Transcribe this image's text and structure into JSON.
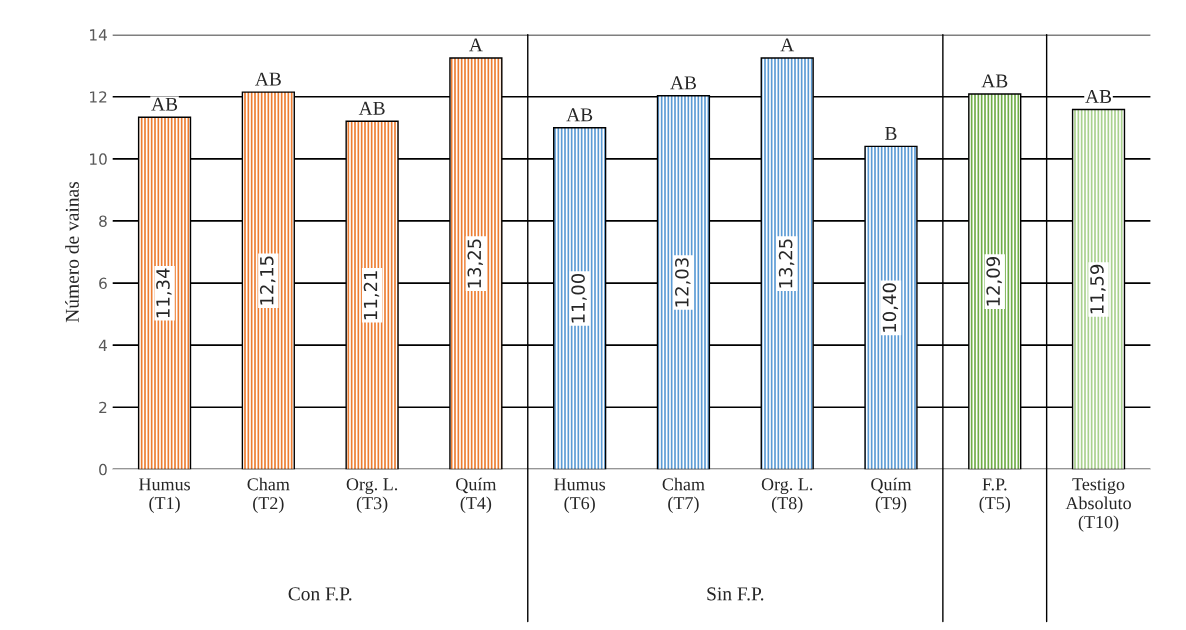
{
  "chart_data": {
    "type": "bar",
    "ylabel": "Número de vainas",
    "categories": [
      "Humus\n(T1)",
      "Cham\n(T2)",
      "Org. L.\n(T3)",
      "Quím\n(T4)",
      "Humus\n(T6)",
      "Cham\n(T7)",
      "Org. L.\n(T8)",
      "Quím\n(T9)",
      "F.P.\n(T5)",
      "Testigo\nAbsoluto\n(T10)"
    ],
    "values": [
      11.34,
      12.15,
      11.21,
      13.25,
      11.0,
      12.03,
      13.25,
      10.4,
      12.09,
      11.59
    ],
    "value_labels": [
      "11,34",
      "12,15",
      "11,21",
      "13,25",
      "11,00",
      "12,03",
      "13,25",
      "10,40",
      "12,09",
      "11,59"
    ],
    "colors": [
      "#ed7d31",
      "#ed7d31",
      "#ed7d31",
      "#ed7d31",
      "#5b9bd5",
      "#5b9bd5",
      "#5b9bd5",
      "#5b9bd5",
      "#70ad47",
      "#a9d18e"
    ],
    "ylim": [
      0,
      14
    ],
    "yticks": [
      0,
      2,
      4,
      6,
      8,
      10,
      12,
      14
    ],
    "grid": "y",
    "annotations": [
      {
        "text": "AB",
        "x": "Humus\n(T1)",
        "y": 11.34
      },
      {
        "text": "AB",
        "x": "Cham\n(T2)",
        "y": 12.15
      },
      {
        "text": "AB",
        "x": "Org. L.\n(T3)",
        "y": 11.21
      },
      {
        "text": "A",
        "x": "Quím\n(T4)",
        "y": 13.25
      },
      {
        "text": "AB",
        "x": "Humus\n(T6)",
        "y": 11.0
      },
      {
        "text": "AB",
        "x": "Cham\n(T7)",
        "y": 12.03
      },
      {
        "text": "A",
        "x": "Org. L.\n(T8)",
        "y": 13.25
      },
      {
        "text": "B",
        "x": "Quím\n(T9)",
        "y": 10.4
      },
      {
        "text": "AB",
        "x": "F.P.\n(T5)",
        "y": 12.09
      },
      {
        "text": "AB",
        "x": "Testigo\nAbsoluto\n(T10)",
        "y": 11.59
      },
      "Con F.P.",
      "Sin F.P."
    ]
  }
}
